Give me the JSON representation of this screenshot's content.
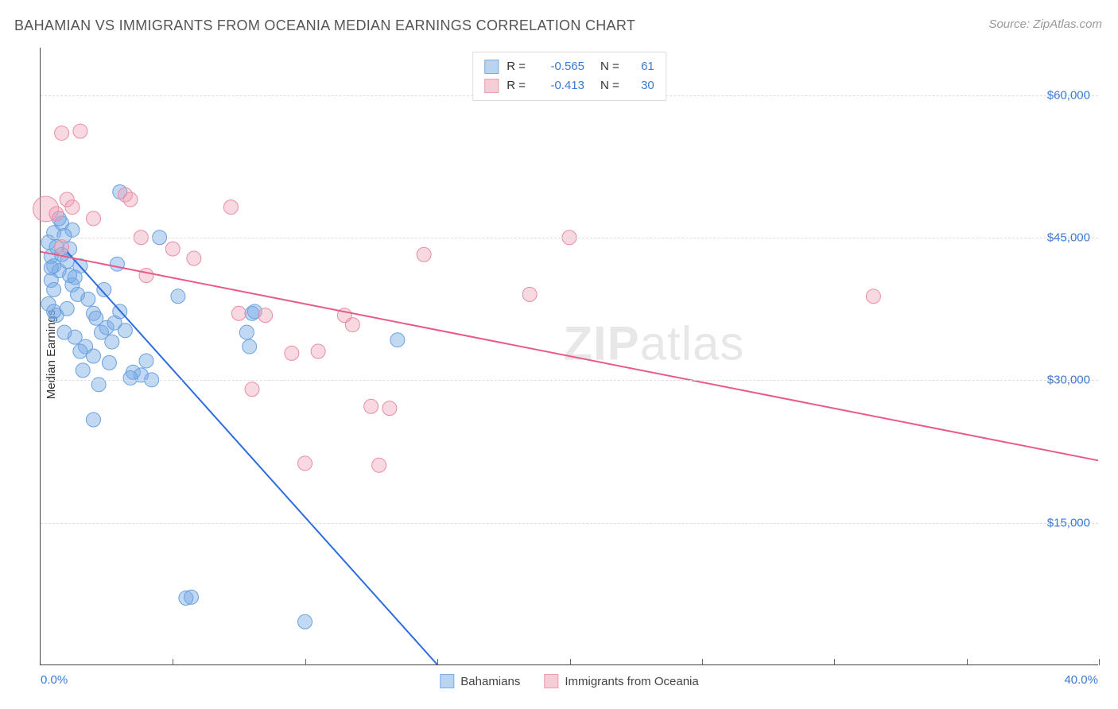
{
  "title": "BAHAMIAN VS IMMIGRANTS FROM OCEANIA MEDIAN EARNINGS CORRELATION CHART",
  "source": "Source: ZipAtlas.com",
  "y_axis_label": "Median Earnings",
  "watermark_bold": "ZIP",
  "watermark_thin": "atlas",
  "chart": {
    "type": "scatter",
    "background_color": "#ffffff",
    "grid_color": "#dddddd",
    "axis_color": "#444444",
    "value_color": "#3a7bd5",
    "title_fontsize": 18,
    "label_fontsize": 15,
    "xlim": [
      0,
      40
    ],
    "ylim": [
      0,
      65000
    ],
    "x_min_label": "0.0%",
    "x_max_label": "40.0%",
    "x_ticks": [
      0,
      5,
      10,
      15,
      20,
      25,
      30,
      35,
      40
    ],
    "y_ticks": [
      {
        "v": 15000,
        "label": "$15,000"
      },
      {
        "v": 30000,
        "label": "$30,000"
      },
      {
        "v": 45000,
        "label": "$45,000"
      },
      {
        "v": 60000,
        "label": "$60,000"
      }
    ],
    "series": [
      {
        "name": "Bahamians",
        "color_fill": "rgba(120,170,230,0.45)",
        "color_stroke": "#6aa0dd",
        "swatch_fill": "#b9d4f0",
        "swatch_border": "#7aaee3",
        "trend_color": "#2d6cdf",
        "trend_width": 2,
        "marker_radius": 9,
        "R": "-0.565",
        "N": "61",
        "trend_line": {
          "x1": 1.0,
          "y1": 43500,
          "x2": 15.0,
          "y2": 0
        },
        "points": [
          {
            "x": 0.3,
            "y": 44500
          },
          {
            "x": 0.4,
            "y": 43000
          },
          {
            "x": 0.6,
            "y": 44000
          },
          {
            "x": 0.5,
            "y": 42000
          },
          {
            "x": 0.7,
            "y": 41500
          },
          {
            "x": 0.8,
            "y": 43200
          },
          {
            "x": 0.4,
            "y": 40500
          },
          {
            "x": 1.0,
            "y": 42500
          },
          {
            "x": 1.1,
            "y": 41000
          },
          {
            "x": 0.5,
            "y": 39500
          },
          {
            "x": 1.2,
            "y": 40000
          },
          {
            "x": 1.4,
            "y": 39000
          },
          {
            "x": 1.5,
            "y": 42000
          },
          {
            "x": 1.0,
            "y": 37500
          },
          {
            "x": 0.6,
            "y": 36800
          },
          {
            "x": 2.0,
            "y": 37000
          },
          {
            "x": 2.1,
            "y": 36500
          },
          {
            "x": 1.8,
            "y": 38500
          },
          {
            "x": 2.3,
            "y": 35000
          },
          {
            "x": 2.5,
            "y": 35500
          },
          {
            "x": 1.3,
            "y": 34500
          },
          {
            "x": 1.7,
            "y": 33500
          },
          {
            "x": 2.8,
            "y": 36000
          },
          {
            "x": 3.0,
            "y": 37200
          },
          {
            "x": 3.2,
            "y": 35200
          },
          {
            "x": 2.0,
            "y": 32500
          },
          {
            "x": 2.6,
            "y": 31800
          },
          {
            "x": 3.5,
            "y": 30800
          },
          {
            "x": 3.8,
            "y": 30500
          },
          {
            "x": 1.6,
            "y": 31000
          },
          {
            "x": 2.2,
            "y": 29500
          },
          {
            "x": 4.0,
            "y": 32000
          },
          {
            "x": 3.0,
            "y": 49800
          },
          {
            "x": 0.8,
            "y": 46500
          },
          {
            "x": 1.2,
            "y": 45800
          },
          {
            "x": 0.3,
            "y": 38000
          },
          {
            "x": 0.9,
            "y": 35000
          },
          {
            "x": 1.5,
            "y": 33000
          },
          {
            "x": 2.4,
            "y": 39500
          },
          {
            "x": 2.9,
            "y": 42200
          },
          {
            "x": 4.5,
            "y": 45000
          },
          {
            "x": 5.2,
            "y": 38800
          },
          {
            "x": 4.2,
            "y": 30000
          },
          {
            "x": 2.0,
            "y": 25800
          },
          {
            "x": 3.4,
            "y": 30200
          },
          {
            "x": 7.8,
            "y": 35000
          },
          {
            "x": 7.9,
            "y": 33500
          },
          {
            "x": 8.0,
            "y": 37000
          },
          {
            "x": 8.1,
            "y": 37200
          },
          {
            "x": 13.5,
            "y": 34200
          },
          {
            "x": 5.5,
            "y": 7000
          },
          {
            "x": 5.7,
            "y": 7100
          },
          {
            "x": 10.0,
            "y": 4500
          },
          {
            "x": 0.5,
            "y": 45500
          },
          {
            "x": 0.7,
            "y": 47000
          },
          {
            "x": 0.9,
            "y": 45200
          },
          {
            "x": 1.1,
            "y": 43800
          },
          {
            "x": 1.3,
            "y": 40800
          },
          {
            "x": 0.4,
            "y": 41800
          },
          {
            "x": 0.5,
            "y": 37200
          },
          {
            "x": 2.7,
            "y": 34000
          }
        ]
      },
      {
        "name": "Immigrants from Oceania",
        "color_fill": "rgba(240,160,180,0.40)",
        "color_stroke": "#e88ca4",
        "swatch_fill": "#f4cdd7",
        "swatch_border": "#eb9db2",
        "trend_color": "#e85a88",
        "trend_width": 2,
        "marker_radius": 9,
        "R": "-0.413",
        "N": "30",
        "trend_line": {
          "x1": 0.0,
          "y1": 43500,
          "x2": 40.0,
          "y2": 21500
        },
        "points": [
          {
            "x": 0.8,
            "y": 56000
          },
          {
            "x": 1.5,
            "y": 56200
          },
          {
            "x": 3.2,
            "y": 49500
          },
          {
            "x": 3.4,
            "y": 49000
          },
          {
            "x": 0.2,
            "y": 48000,
            "r": 16
          },
          {
            "x": 1.0,
            "y": 49000
          },
          {
            "x": 1.2,
            "y": 48200
          },
          {
            "x": 2.0,
            "y": 47000
          },
          {
            "x": 0.6,
            "y": 47500
          },
          {
            "x": 3.8,
            "y": 45000
          },
          {
            "x": 5.0,
            "y": 43800
          },
          {
            "x": 5.8,
            "y": 42800
          },
          {
            "x": 4.0,
            "y": 41000
          },
          {
            "x": 7.2,
            "y": 48200
          },
          {
            "x": 14.5,
            "y": 43200
          },
          {
            "x": 20.0,
            "y": 45000
          },
          {
            "x": 18.5,
            "y": 39000
          },
          {
            "x": 7.5,
            "y": 37000
          },
          {
            "x": 8.5,
            "y": 36800
          },
          {
            "x": 9.5,
            "y": 32800
          },
          {
            "x": 10.5,
            "y": 33000
          },
          {
            "x": 11.5,
            "y": 36800
          },
          {
            "x": 11.8,
            "y": 35800
          },
          {
            "x": 8.0,
            "y": 29000
          },
          {
            "x": 12.5,
            "y": 27200
          },
          {
            "x": 13.2,
            "y": 27000
          },
          {
            "x": 10.0,
            "y": 21200
          },
          {
            "x": 12.8,
            "y": 21000
          },
          {
            "x": 31.5,
            "y": 38800
          },
          {
            "x": 0.8,
            "y": 44000
          }
        ]
      }
    ]
  }
}
